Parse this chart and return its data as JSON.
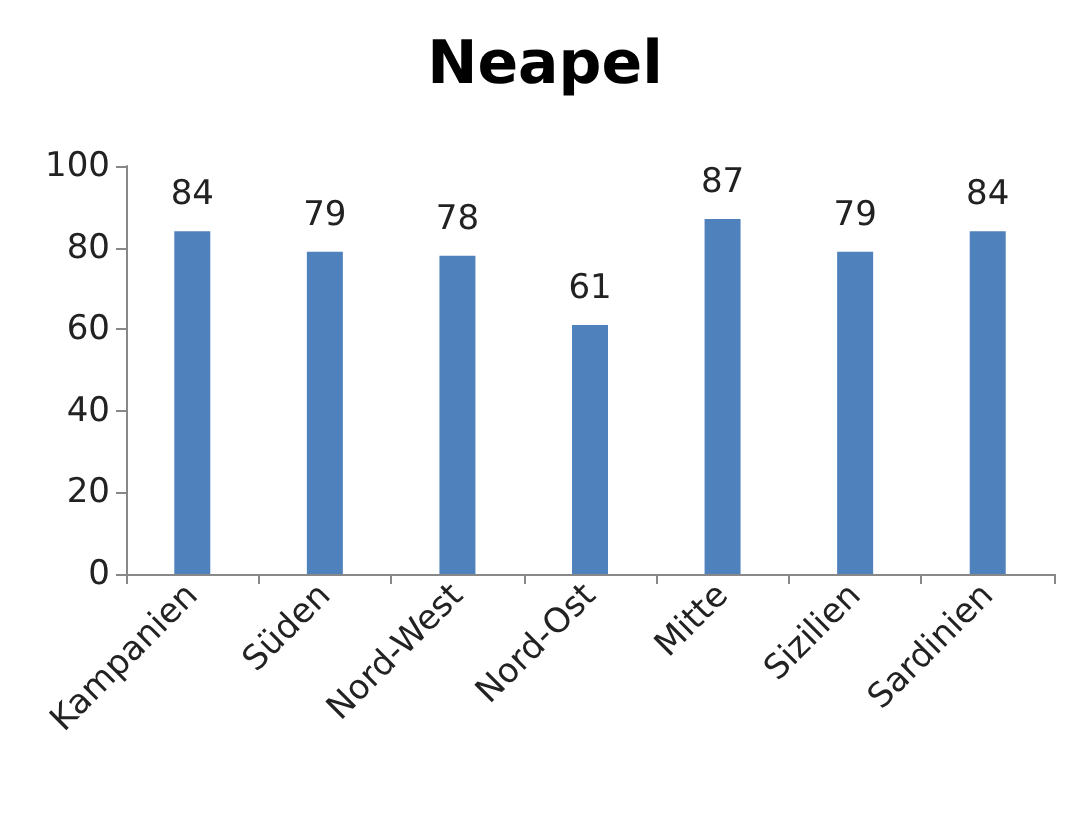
{
  "chart_data": {
    "type": "bar",
    "title": "Neapel",
    "categories": [
      "Kampanien",
      "Süden",
      "Nord-West",
      "Nord-Ost",
      "Mitte",
      "Sizilien",
      "Sardinien"
    ],
    "values": [
      84,
      79,
      78,
      61,
      87,
      79,
      84
    ],
    "color": "#4f81bd",
    "ylim": [
      0,
      100
    ],
    "yticks": [
      0,
      20,
      40,
      60,
      80,
      100
    ],
    "grid": false,
    "data_labels": true
  }
}
